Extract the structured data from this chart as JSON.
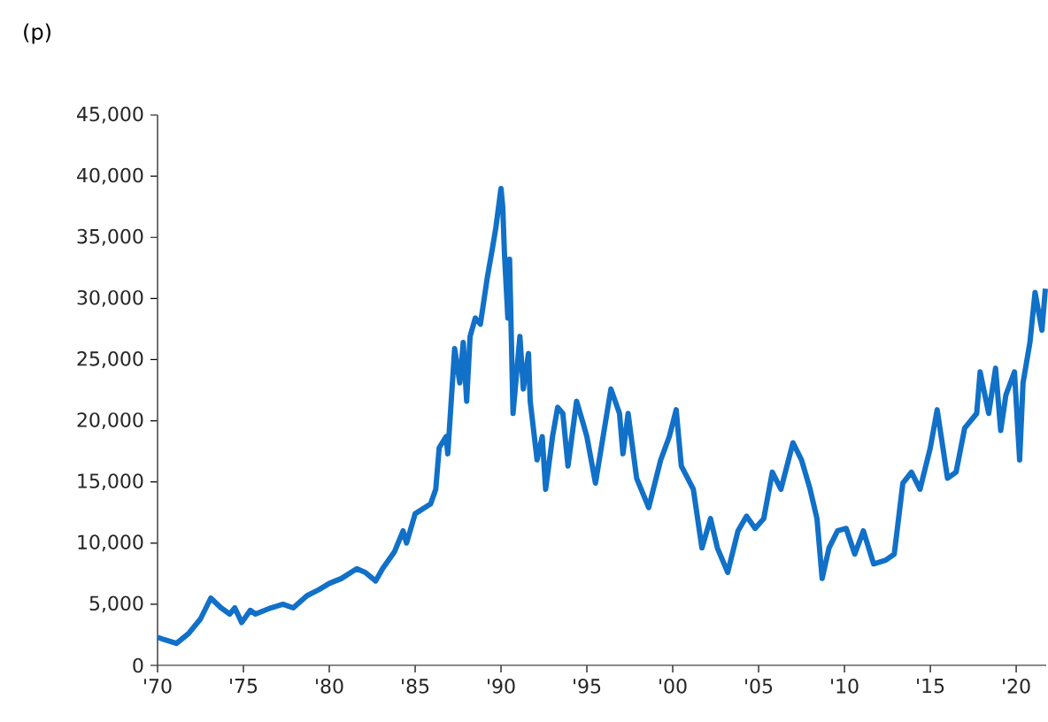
{
  "chart_data": {
    "type": "line",
    "ylabel": "(p)",
    "xlim": [
      1970,
      2021.75
    ],
    "ylim": [
      0,
      45000
    ],
    "xticks": [
      {
        "value": 1970,
        "label": "'70"
      },
      {
        "value": 1975,
        "label": "'75"
      },
      {
        "value": 1980,
        "label": "'80"
      },
      {
        "value": 1985,
        "label": "'85"
      },
      {
        "value": 1990,
        "label": "'90"
      },
      {
        "value": 1995,
        "label": "'95"
      },
      {
        "value": 2000,
        "label": "'00"
      },
      {
        "value": 2005,
        "label": "'05"
      },
      {
        "value": 2010,
        "label": "'10"
      },
      {
        "value": 2015,
        "label": "'15"
      },
      {
        "value": 2020,
        "label": "'20"
      }
    ],
    "yticks": [
      0,
      {
        "value": 5000,
        "label": "5,000"
      },
      {
        "value": 10000,
        "label": "10,000"
      },
      {
        "value": 15000,
        "label": "15,000"
      },
      {
        "value": 20000,
        "label": "20,000"
      },
      {
        "value": 25000,
        "label": "25,000"
      },
      {
        "value": 30000,
        "label": "30,000"
      },
      {
        "value": 35000,
        "label": "35,000"
      },
      {
        "value": 40000,
        "label": "40,000"
      },
      {
        "value": 45000,
        "label": "45,000"
      }
    ],
    "grid": false,
    "marker": "none",
    "line_style": "solid",
    "series": [
      {
        "color": "#1170c8",
        "x": [
          1970.0,
          1970.4,
          1971.1,
          1971.8,
          1972.5,
          1973.1,
          1973.7,
          1974.2,
          1974.5,
          1974.9,
          1975.4,
          1975.7,
          1976.6,
          1977.3,
          1977.9,
          1978.7,
          1979.4,
          1980.0,
          1980.7,
          1981.6,
          1982.1,
          1982.7,
          1983.1,
          1983.8,
          1984.3,
          1984.5,
          1985.0,
          1985.9,
          1986.2,
          1986.4,
          1986.8,
          1986.9,
          1987.3,
          1987.6,
          1987.8,
          1988.0,
          1988.2,
          1988.5,
          1988.8,
          1989.2,
          1989.5,
          1989.7,
          1990.0,
          1990.1,
          1990.2,
          1990.4,
          1990.5,
          1990.7,
          1991.1,
          1991.3,
          1991.6,
          1991.7,
          1992.1,
          1992.4,
          1992.6,
          1993.0,
          1993.3,
          1993.6,
          1993.9,
          1994.4,
          1994.8,
          1995.0,
          1995.5,
          1996.4,
          1996.9,
          1997.1,
          1997.4,
          1997.9,
          1998.6,
          1999.3,
          1999.8,
          2000.2,
          2000.5,
          2001.2,
          2001.7,
          2002.2,
          2002.6,
          2003.2,
          2003.8,
          2004.3,
          2004.8,
          2005.3,
          2005.8,
          2006.3,
          2007.0,
          2007.5,
          2008.0,
          2008.4,
          2008.7,
          2009.1,
          2009.6,
          2010.1,
          2010.6,
          2011.1,
          2011.7,
          2012.4,
          2012.9,
          2013.4,
          2013.9,
          2014.4,
          2015.0,
          2015.4,
          2016.0,
          2016.5,
          2017.0,
          2017.7,
          2017.9,
          2018.4,
          2018.8,
          2019.1,
          2019.4,
          2019.9,
          2020.2,
          2020.4,
          2020.8,
          2021.1,
          2021.5,
          2021.7
        ],
        "values": [
          2300,
          2100,
          1800,
          2600,
          3800,
          5500,
          4700,
          4200,
          4700,
          3500,
          4500,
          4200,
          4700,
          5000,
          4700,
          5700,
          6200,
          6700,
          7100,
          7900,
          7600,
          6900,
          7900,
          9300,
          11000,
          10000,
          12400,
          13200,
          14400,
          17800,
          18700,
          17300,
          25900,
          23100,
          26400,
          21600,
          26900,
          28400,
          27900,
          31700,
          34100,
          35800,
          39000,
          37500,
          33700,
          28400,
          33200,
          20600,
          26900,
          22600,
          25500,
          21600,
          16800,
          18700,
          14400,
          18700,
          21100,
          20600,
          16300,
          21600,
          19700,
          18700,
          14900,
          22600,
          20600,
          17300,
          20600,
          15300,
          12900,
          16800,
          18700,
          20900,
          16300,
          14400,
          9600,
          12000,
          9600,
          7600,
          11000,
          12200,
          11200,
          12000,
          15800,
          14400,
          18200,
          16800,
          14400,
          12000,
          7100,
          9600,
          11000,
          11200,
          9100,
          11000,
          8300,
          8600,
          9100,
          14900,
          15800,
          14400,
          17800,
          20900,
          15300,
          15800,
          19400,
          20600,
          24000,
          20600,
          24300,
          19200,
          22100,
          24000,
          16800,
          23100,
          26400,
          30500,
          27400,
          30800
        ]
      }
    ]
  }
}
